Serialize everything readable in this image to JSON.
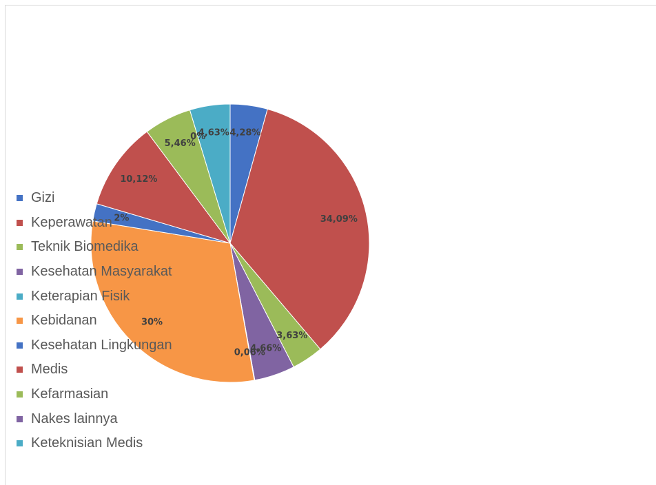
{
  "chart_data": {
    "type": "pie",
    "title": "",
    "start_angle_deg": 0,
    "legend_position": "left",
    "slices": [
      {
        "name": "Gizi",
        "value": 4.28,
        "label": "4,28%",
        "color": "#4472c4"
      },
      {
        "name": "Keperawatan",
        "value": 34.09,
        "label": "34,09%",
        "color": "#c0504d"
      },
      {
        "name": "Teknik Biomedika",
        "value": 3.63,
        "label": "3,63%",
        "color": "#9bbb59"
      },
      {
        "name": "Kesehatan Masyarakat",
        "value": 4.66,
        "label": "4,66%",
        "color": "#8064a2"
      },
      {
        "name": "Keterapian Fisik",
        "value": 0.06,
        "label": "0,06%",
        "color": "#4bacc6"
      },
      {
        "name": "Kebidanan",
        "value": 30.0,
        "label": "30%",
        "color": "#f79646"
      },
      {
        "name": "Kesehatan Lingkungan",
        "value": 2.0,
        "label": "2%",
        "color": "#4472c4"
      },
      {
        "name": "Medis",
        "value": 10.12,
        "label": "10,12%",
        "color": "#c0504d"
      },
      {
        "name": "Kefarmasian",
        "value": 5.46,
        "label": "5,46%",
        "color": "#9bbb59"
      },
      {
        "name": "Nakes lainnya",
        "value": 0.0,
        "label": "0%",
        "color": "#8064a2"
      },
      {
        "name": "Keteknisian Medis",
        "value": 4.63,
        "label": "4,63%",
        "color": "#4bacc6"
      }
    ]
  }
}
